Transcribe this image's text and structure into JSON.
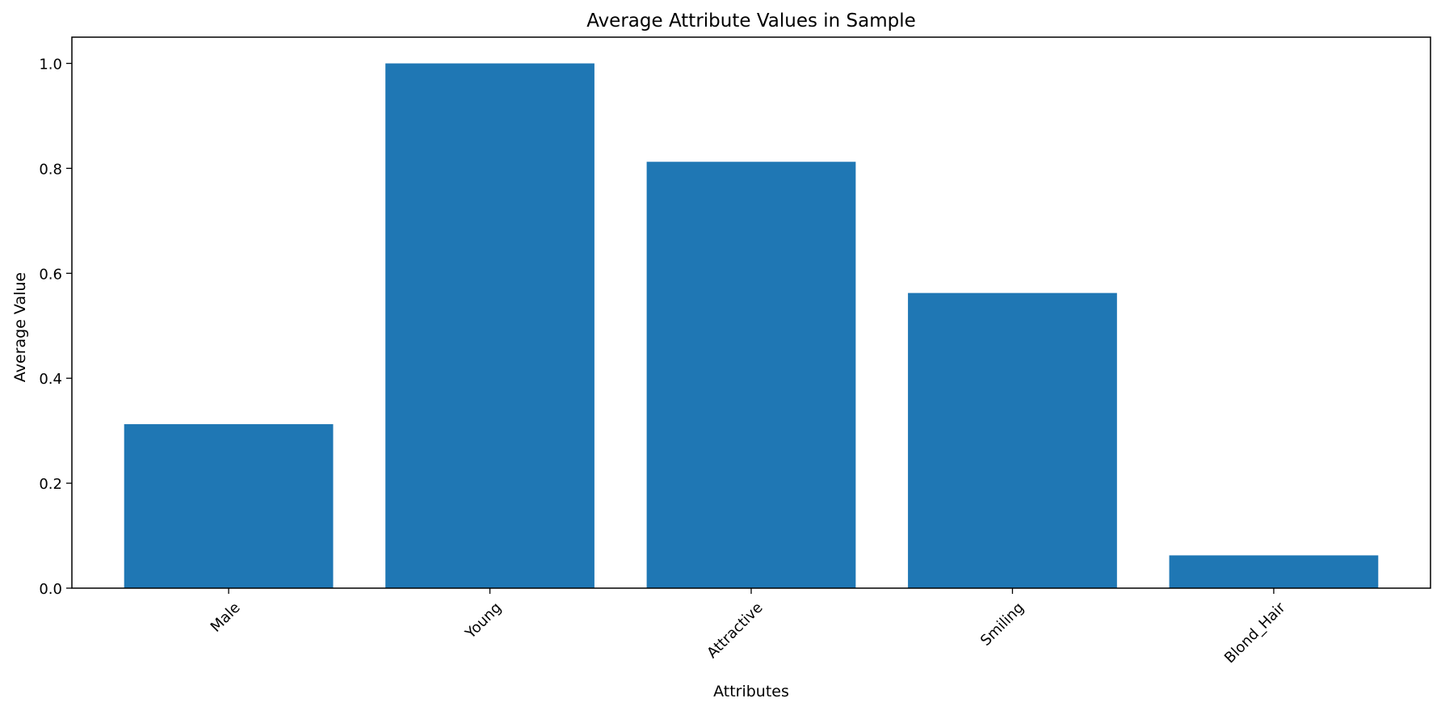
{
  "chart_data": {
    "type": "bar",
    "title": "Average Attribute Values in Sample",
    "xlabel": "Attributes",
    "ylabel": "Average Value",
    "categories": [
      "Male",
      "Young",
      "Attractive",
      "Smiling",
      "Blond_Hair"
    ],
    "values": [
      0.3125,
      1.0,
      0.8125,
      0.5625,
      0.0625
    ],
    "ylim": [
      0,
      1.05
    ],
    "yticks": [
      0.0,
      0.2,
      0.4,
      0.6,
      0.8,
      1.0
    ],
    "ytick_labels": [
      "0.0",
      "0.2",
      "0.4",
      "0.6",
      "0.8",
      "1.0"
    ],
    "xtick_rotation_deg": 45,
    "grid": false,
    "legend": "none",
    "colors": {
      "bar": "#1f77b4",
      "axis": "#000000",
      "background": "#ffffff"
    }
  }
}
